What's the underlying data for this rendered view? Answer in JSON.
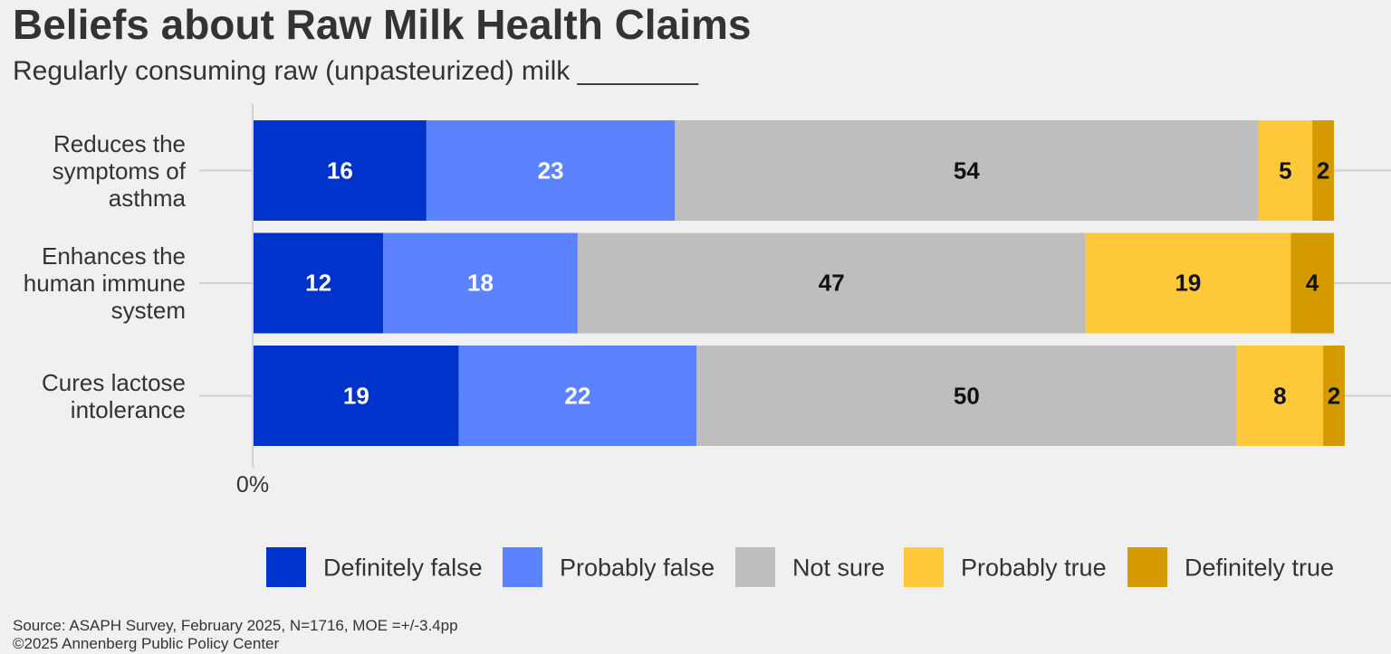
{
  "chart_data": {
    "type": "stacked-bar-horizontal",
    "title": "Beliefs about Raw Milk Health Claims",
    "subtitle": "Regularly consuming raw (unpasteurized) milk ________",
    "categories": [
      "Reduces the symptoms of asthma",
      "Enhances the human immune system",
      "Cures lactose intolerance"
    ],
    "series": [
      {
        "name": "Definitely false",
        "color": "#0033cc",
        "values": [
          16,
          12,
          19
        ]
      },
      {
        "name": "Probably false",
        "color": "#5b83ff",
        "values": [
          23,
          18,
          22
        ]
      },
      {
        "name": "Not sure",
        "color": "#bebebe",
        "values": [
          54,
          47,
          50
        ]
      },
      {
        "name": "Probably true",
        "color": "#fdc83a",
        "values": [
          5,
          19,
          8
        ]
      },
      {
        "name": "Definitely true",
        "color": "#d49a00",
        "values": [
          2,
          4,
          2
        ]
      }
    ],
    "xlim": [
      0,
      100
    ],
    "xticks": [
      {
        "value": 0,
        "label": "0%"
      }
    ],
    "legend": "bottom",
    "notes": [
      "Source: ASAPH Survey, February 2025, N=1716, MOE =+/-3.4pp",
      "©2025 Annenberg Public Policy Center"
    ]
  }
}
